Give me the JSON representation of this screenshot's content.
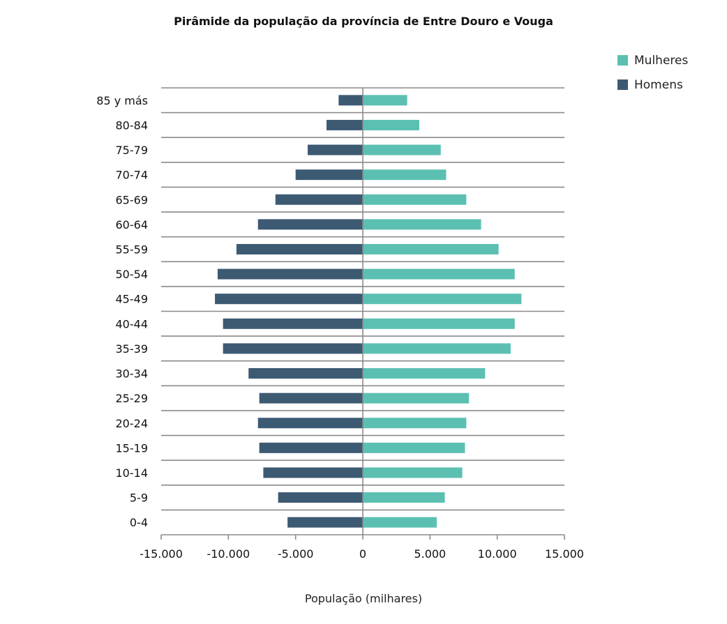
{
  "chart_data": {
    "type": "bar",
    "orientation": "horizontal",
    "title": "Pirâmide da população da província de Entre Douro e Vouga",
    "xlabel": "População (milhares)",
    "ylabel": "",
    "xlim": [
      -15000,
      15000
    ],
    "x_ticks": [
      -15000,
      -10000,
      -5000,
      0,
      5000,
      10000,
      15000
    ],
    "x_tick_labels": [
      "-15.000",
      "-10.000",
      "-5.000",
      "0",
      "5.000",
      "10.000",
      "15.000"
    ],
    "categories": [
      "85 y más",
      "80-84",
      "75-79",
      "70-74",
      "65-69",
      "60-64",
      "55-59",
      "50-54",
      "45-49",
      "40-44",
      "35-39",
      "30-34",
      "25-29",
      "20-24",
      "15-19",
      "10-14",
      "5-9",
      "0-4"
    ],
    "series": [
      {
        "name": "Mulheres",
        "color": "#5bc0b2",
        "values": [
          3300,
          4200,
          5800,
          6200,
          7700,
          8800,
          10100,
          11300,
          11800,
          11300,
          11000,
          9100,
          7900,
          7700,
          7600,
          7400,
          6100,
          5500
        ]
      },
      {
        "name": "Homens",
        "color": "#3d5a73",
        "values": [
          -1800,
          -2700,
          -4100,
          -5000,
          -6500,
          -7800,
          -9400,
          -10800,
          -11000,
          -10400,
          -10400,
          -8500,
          -7700,
          -7800,
          -7700,
          -7400,
          -6300,
          -5600
        ]
      }
    ],
    "grid": true,
    "legend_position": "top-right"
  }
}
